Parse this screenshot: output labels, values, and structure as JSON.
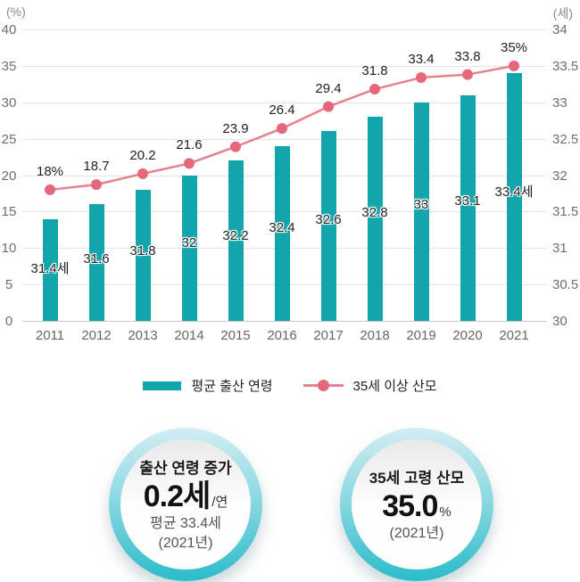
{
  "colors": {
    "bar": "#13A5AC",
    "line": "#E8818E",
    "dot": "#E5677B",
    "grid": "#e4e4e4",
    "zero_line": "#c6c6c6",
    "card_ring_top": "#d2eef3",
    "card_ring_bottom": "#2bbcca"
  },
  "chart_data": {
    "type": "bar+line combo",
    "categories": [
      "2011",
      "2012",
      "2013",
      "2014",
      "2015",
      "2016",
      "2017",
      "2018",
      "2019",
      "2020",
      "2021"
    ],
    "series": [
      {
        "name": "평균 출산 연령",
        "type": "bar",
        "axis": "right",
        "unit": "세",
        "values": [
          31.4,
          31.6,
          31.8,
          32,
          32.2,
          32.4,
          32.6,
          32.8,
          33,
          33.1,
          33.4
        ],
        "labels": [
          "31.4세",
          "31.6",
          "31.8",
          "32",
          "32.2",
          "32.4",
          "32.6",
          "32.8",
          "33",
          "33.1",
          "33.4세"
        ]
      },
      {
        "name": "35세 이상 산모",
        "type": "line",
        "axis": "left",
        "unit": "%",
        "values": [
          18,
          18.7,
          20.2,
          21.6,
          23.9,
          26.4,
          29.4,
          31.8,
          33.4,
          33.8,
          35
        ],
        "labels": [
          "18%",
          "18.7",
          "20.2",
          "21.6",
          "23.9",
          "26.4",
          "29.4",
          "31.8",
          "33.4",
          "33.8",
          "35%"
        ]
      }
    ],
    "left_axis": {
      "title": "(%)",
      "min": 0,
      "max": 40,
      "step": 5,
      "ticks": [
        "40",
        "35",
        "30",
        "25",
        "20",
        "15",
        "10",
        "5",
        "0"
      ]
    },
    "right_axis": {
      "title": "(세)",
      "min": 30,
      "max": 34,
      "step": 0.5,
      "ticks": [
        "34",
        "33.5",
        "33",
        "32.5",
        "32",
        "31.5",
        "31",
        "30.5",
        "30"
      ]
    },
    "grid": true,
    "legend_position": "bottom"
  },
  "legend": {
    "bar_label": "평균 출산 연령",
    "line_label": "35세 이상 산모"
  },
  "cards": [
    {
      "title": "출산 연령 증가",
      "value": "0.2세",
      "value_suffix": "/연",
      "sub1": "평균 33.4세",
      "sub2": "(2021년)"
    },
    {
      "title": "35세 고령 산모",
      "value": "35.0",
      "value_suffix": "%",
      "sub1": "(2021년)",
      "sub2": ""
    }
  ]
}
